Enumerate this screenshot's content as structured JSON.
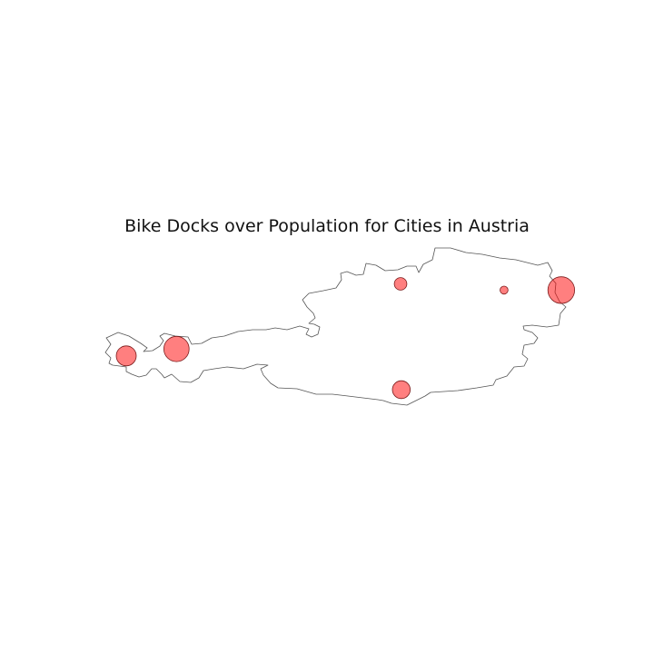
{
  "title": "Bike Docks over Population for Cities in Austria",
  "map": {
    "region": "Austria",
    "outline_color": "#555555",
    "marker_color": "#ff0000",
    "marker_opacity": 0.5,
    "marker_edge_color": "#7a1a1a"
  },
  "chart_data": {
    "type": "scatter",
    "title": "Bike Docks over Population for Cities in Austria",
    "xlabel": "",
    "ylabel": "",
    "axes_visible": false,
    "x_name": "longitude",
    "y_name": "latitude",
    "size_name": "bike docks over population (relative)",
    "points": [
      {
        "lon": 11.39,
        "lat": 47.27,
        "size": 0.8
      },
      {
        "lon": 10.74,
        "lat": 47.16,
        "size": 0.5
      },
      {
        "lon": 14.29,
        "lat": 48.31,
        "size": 0.2
      },
      {
        "lon": 15.63,
        "lat": 48.21,
        "size": 0.08
      },
      {
        "lon": 16.37,
        "lat": 48.21,
        "size": 0.9
      },
      {
        "lon": 14.3,
        "lat": 46.62,
        "size": 0.4
      }
    ],
    "xlim": [
      9.4,
      17.3
    ],
    "ylim": [
      46.2,
      49.1
    ]
  }
}
